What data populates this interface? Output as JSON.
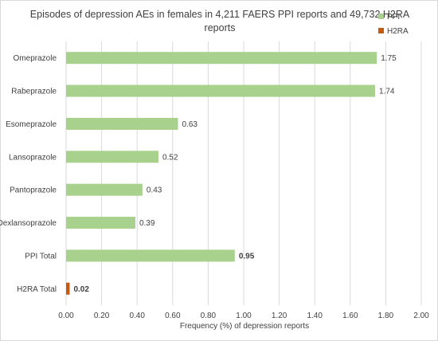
{
  "chart_data": {
    "type": "bar",
    "orientation": "horizontal",
    "title_lines": [
      "Episodes of depression AEs in females in 4,211 FAERS PPI reports and 49,732 H2RA",
      "reports"
    ],
    "xlabel": "Frequency (%) of depression reports",
    "ylabel": "",
    "xlim": [
      0,
      2.0
    ],
    "x_ticks": [
      "0.00",
      "0.20",
      "0.40",
      "0.60",
      "0.80",
      "1.00",
      "1.20",
      "1.40",
      "1.60",
      "1.80",
      "2.00"
    ],
    "grid": true,
    "legend_position": "top-right",
    "series": [
      {
        "name": "PPI",
        "color": "#a9d18e"
      },
      {
        "name": "H2RA",
        "color": "#c55a11"
      }
    ],
    "bars": [
      {
        "category": "Omeprazole",
        "value": 1.75,
        "label": "1.75",
        "series": "PPI",
        "bold": false
      },
      {
        "category": "Rabeprazole",
        "value": 1.74,
        "label": "1.74",
        "series": "PPI",
        "bold": false
      },
      {
        "category": "Esomeprazole",
        "value": 0.63,
        "label": "0.63",
        "series": "PPI",
        "bold": false
      },
      {
        "category": "Lansoprazole",
        "value": 0.52,
        "label": "0.52",
        "series": "PPI",
        "bold": false
      },
      {
        "category": "Pantoprazole",
        "value": 0.43,
        "label": "0.43",
        "series": "PPI",
        "bold": false
      },
      {
        "category": "Dexlansoprazole",
        "value": 0.39,
        "label": "0.39",
        "series": "PPI",
        "bold": false
      },
      {
        "category": "PPI Total",
        "value": 0.95,
        "label": "0.95",
        "series": "PPI",
        "bold": true
      },
      {
        "category": "H2RA Total",
        "value": 0.02,
        "label": "0.02",
        "series": "H2RA",
        "bold": true
      }
    ]
  }
}
